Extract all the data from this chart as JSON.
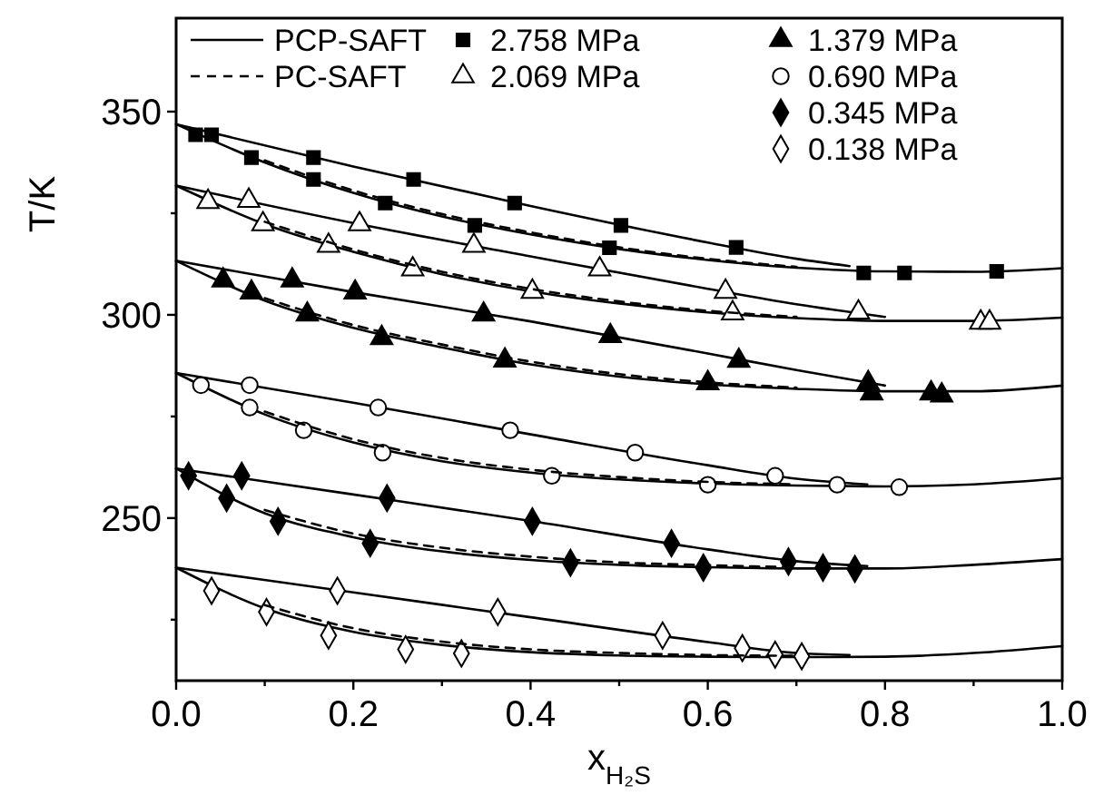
{
  "chart_data": {
    "type": "line",
    "xlabel": "x$_{H₂S}$",
    "ylabel": "T/K",
    "xlim": [
      0,
      1
    ],
    "ylim": [
      210,
      373
    ],
    "xticks": [
      {
        "value": 0,
        "label": "0.0"
      },
      {
        "value": 0.1,
        "label": null
      },
      {
        "value": 0.2,
        "label": "0.2"
      },
      {
        "value": 0.3,
        "label": null
      },
      {
        "value": 0.4,
        "label": "0.4"
      },
      {
        "value": 0.5,
        "label": null
      },
      {
        "value": 0.6,
        "label": "0.6"
      },
      {
        "value": 0.7,
        "label": null
      },
      {
        "value": 0.8,
        "label": "0.8"
      },
      {
        "value": 0.9,
        "label": null
      },
      {
        "value": 1,
        "label": "1.0"
      }
    ],
    "yticks": [
      {
        "value": 225,
        "label": null
      },
      250,
      {
        "value": 275,
        "label": null
      },
      300,
      {
        "value": 325,
        "label": null
      },
      350
    ],
    "grid": false,
    "legend": "top",
    "line_style": "solid",
    "marker": "none",
    "series": [
      {
        "name": "PCP-SAFT",
        "color": "#000000",
        "x": [
          0,
          0.2,
          0.4,
          0.6,
          0.7,
          0.76
        ],
        "values": [
          346.9,
          336.5,
          326.8,
          317.8,
          313.8,
          312.0
        ]
      },
      {
        "color": "#000000",
        "x": [
          0,
          0.1,
          0.2,
          0.3,
          0.4,
          0.5,
          0.6,
          0.7,
          0.8,
          0.9,
          1
        ],
        "values": [
          346.9,
          337.5,
          330.0,
          324.2,
          319.8,
          316.2,
          313.5,
          311.6,
          310.7,
          310.6,
          311.5
        ]
      },
      {
        "color": "#000000",
        "x": [
          0,
          0.2,
          0.4,
          0.6,
          0.7,
          0.8
        ],
        "values": [
          331.8,
          322.6,
          314.4,
          306.4,
          302.6,
          299.5
        ]
      },
      {
        "color": "#000000",
        "x": [
          0,
          0.1,
          0.2,
          0.3,
          0.4,
          0.5,
          0.6,
          0.7,
          0.8,
          0.9,
          1
        ],
        "values": [
          331.8,
          322.3,
          315.5,
          310.0,
          305.8,
          302.8,
          300.6,
          299.2,
          298.5,
          298.5,
          299.3
        ]
      },
      {
        "color": "#000000",
        "x": [
          0,
          0.2,
          0.4,
          0.6,
          0.7,
          0.8
        ],
        "values": [
          313.3,
          305.6,
          298.4,
          290.5,
          286.4,
          282.6
        ]
      },
      {
        "color": "#000000",
        "x": [
          0,
          0.1,
          0.2,
          0.3,
          0.4,
          0.5,
          0.6,
          0.7,
          0.8,
          0.9,
          1
        ],
        "values": [
          313.3,
          303.5,
          296.8,
          292.0,
          287.8,
          284.8,
          282.9,
          281.8,
          281.2,
          281.2,
          282.6
        ]
      },
      {
        "color": "#000000",
        "x": [
          0,
          0.2,
          0.4,
          0.6,
          0.7,
          0.78
        ],
        "values": [
          285.7,
          278.4,
          270.6,
          263.0,
          259.7,
          258.3
        ]
      },
      {
        "color": "#000000",
        "x": [
          0,
          0.1,
          0.2,
          0.3,
          0.4,
          0.5,
          0.6,
          0.7,
          0.8,
          0.9,
          1
        ],
        "values": [
          285.7,
          275.5,
          268.6,
          264.0,
          261.2,
          259.5,
          258.5,
          258.0,
          257.8,
          258.3,
          259.8
        ]
      },
      {
        "color": "#000000",
        "x": [
          0,
          0.2,
          0.4,
          0.6,
          0.7,
          0.78
        ],
        "values": [
          262.2,
          255.8,
          249.3,
          242.3,
          239.4,
          238.2
        ]
      },
      {
        "color": "#000000",
        "x": [
          0,
          0.1,
          0.2,
          0.3,
          0.4,
          0.5,
          0.6,
          0.7,
          0.8,
          0.9,
          1
        ],
        "values": [
          262.2,
          251.2,
          245.3,
          241.8,
          239.7,
          238.5,
          237.9,
          237.6,
          237.6,
          238.5,
          239.9
        ]
      },
      {
        "color": "#000000",
        "x": [
          0,
          0.2,
          0.4,
          0.6,
          0.7,
          0.76
        ],
        "values": [
          237.8,
          231.7,
          225.6,
          219.5,
          216.8,
          216.3
        ]
      },
      {
        "color": "#000000",
        "x": [
          0,
          0.1,
          0.2,
          0.3,
          0.4,
          0.5,
          0.6,
          0.7,
          0.8,
          0.9,
          1
        ],
        "values": [
          237.8,
          227.8,
          222.0,
          218.8,
          217.0,
          216.2,
          215.9,
          215.8,
          215.9,
          216.8,
          218.5
        ]
      },
      {
        "name": "PC-SAFT",
        "color": "#000000",
        "line_style": "dashed",
        "x": [
          0.1,
          0.2,
          0.3,
          0.4,
          0.5,
          0.6,
          0.7
        ],
        "values": [
          338.0,
          330.6,
          324.8,
          320.3,
          316.6,
          313.8,
          311.8
        ]
      },
      {
        "color": "#000000",
        "line_style": "dashed",
        "x": [
          0.1,
          0.2,
          0.3,
          0.4,
          0.5,
          0.6,
          0.7
        ],
        "values": [
          322.9,
          316.1,
          310.6,
          306.4,
          303.3,
          301.0,
          299.5
        ]
      },
      {
        "color": "#000000",
        "line_style": "dashed",
        "x": [
          0.1,
          0.2,
          0.3,
          0.4,
          0.5,
          0.6,
          0.7
        ],
        "values": [
          304.1,
          297.5,
          292.7,
          288.5,
          285.4,
          283.4,
          282.1
        ]
      },
      {
        "color": "#000000",
        "line_style": "dashed",
        "x": [
          0.1,
          0.2,
          0.3,
          0.4,
          0.5,
          0.6,
          0.7
        ],
        "values": [
          276.2,
          269.4,
          264.8,
          261.9,
          260.1,
          258.9,
          258.3
        ]
      },
      {
        "color": "#000000",
        "line_style": "dashed",
        "x": [
          0.1,
          0.2,
          0.3,
          0.4,
          0.5,
          0.6,
          0.7
        ],
        "values": [
          252.0,
          246.2,
          242.7,
          240.5,
          239.1,
          238.4,
          237.9
        ]
      },
      {
        "color": "#000000",
        "line_style": "dashed",
        "x": [
          0.1,
          0.2,
          0.3,
          0.4,
          0.5,
          0.6,
          0.7
        ],
        "values": [
          228.6,
          222.9,
          219.6,
          217.7,
          216.8,
          216.3,
          216.1
        ]
      },
      {
        "type": "scatter",
        "name": "2.758 MPa",
        "color": "#000000",
        "marker": "square",
        "x": [
          0.022,
          0.04,
          0.085,
          0.155,
          0.155,
          0.236,
          0.268,
          0.337,
          0.382,
          0.489,
          0.502,
          0.632,
          0.776,
          0.822,
          0.926
        ],
        "values": [
          344.3,
          344.3,
          338.7,
          338.7,
          333.3,
          327.5,
          333.3,
          322.0,
          327.5,
          316.5,
          322.0,
          316.6,
          310.3,
          310.3,
          310.7
        ]
      },
      {
        "type": "scatter",
        "name": "2.069 MPa",
        "color": "#ffffff",
        "marker": "triangle",
        "x": [
          0.036,
          0.082,
          0.098,
          0.172,
          0.207,
          0.267,
          0.336,
          0.402,
          0.478,
          0.62,
          0.628,
          0.77,
          0.908,
          0.918
        ],
        "values": [
          327.8,
          328.1,
          322.3,
          317.0,
          322.3,
          311.2,
          317.0,
          305.7,
          311.2,
          305.7,
          300.4,
          300.6,
          298.1,
          298.1
        ]
      },
      {
        "type": "scatter",
        "name": "1.379 MPa",
        "color": "#000000",
        "marker": "triangle",
        "x": [
          0.053,
          0.085,
          0.131,
          0.148,
          0.202,
          0.232,
          0.347,
          0.371,
          0.49,
          0.6,
          0.635,
          0.781,
          0.785,
          0.852,
          0.864
        ],
        "values": [
          308.5,
          305.5,
          308.5,
          300.1,
          305.5,
          294.3,
          300.1,
          288.8,
          294.8,
          283.2,
          288.7,
          283.2,
          280.7,
          280.7,
          280.2
        ]
      },
      {
        "type": "scatter",
        "name": "0.690 MPa",
        "color": "#ffffff",
        "marker": "circle",
        "x": [
          0.028,
          0.083,
          0.083,
          0.144,
          0.228,
          0.233,
          0.377,
          0.424,
          0.518,
          0.6,
          0.676,
          0.746,
          0.816
        ],
        "values": [
          282.7,
          282.7,
          277.2,
          271.6,
          277.2,
          266.1,
          271.6,
          260.4,
          266.1,
          258.2,
          260.4,
          258.2,
          257.6
        ]
      },
      {
        "type": "scatter",
        "name": "0.345 MPa",
        "color": "#000000",
        "marker": "diamond",
        "x": [
          0.014,
          0.057,
          0.074,
          0.115,
          0.219,
          0.238,
          0.402,
          0.445,
          0.559,
          0.595,
          0.691,
          0.73,
          0.766
        ],
        "values": [
          260.4,
          254.9,
          260.4,
          249.2,
          243.8,
          254.9,
          249.2,
          239.0,
          243.8,
          237.8,
          239.3,
          237.8,
          237.5
        ]
      },
      {
        "type": "scatter",
        "name": "0.138 MPa",
        "color": "#ffffff",
        "marker": "diamond",
        "x": [
          0.04,
          0.102,
          0.172,
          0.182,
          0.259,
          0.322,
          0.363,
          0.549,
          0.639,
          0.676,
          0.706
        ],
        "values": [
          232.1,
          226.9,
          221.1,
          232.1,
          217.7,
          216.7,
          226.9,
          221.1,
          218.0,
          216.4,
          216.0
        ]
      }
    ]
  }
}
